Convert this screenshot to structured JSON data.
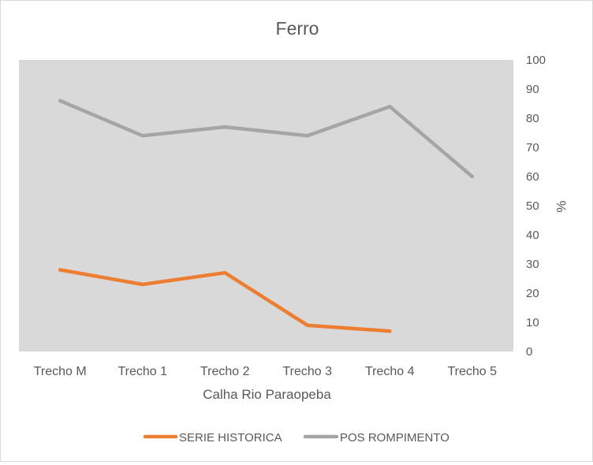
{
  "chart_data": {
    "type": "line",
    "title": "Ferro",
    "xlabel": "Calha Rio Paraopeba",
    "ylabel": "%",
    "categories": [
      "Trecho M",
      "Trecho 1",
      "Trecho 2",
      "Trecho 3",
      "Trecho 4",
      "Trecho 5"
    ],
    "yticks": [
      "0",
      "10",
      "20",
      "30",
      "40",
      "50",
      "60",
      "70",
      "80",
      "90",
      "100"
    ],
    "ylim": [
      0,
      100
    ],
    "y_axis_side": "right",
    "grid": false,
    "legend_position": "bottom",
    "plot_background": "#d9d9d9",
    "series": [
      {
        "name": "SERIE HISTORICA",
        "color": "#ed7d31",
        "values": [
          28,
          23,
          27,
          9,
          7,
          null
        ]
      },
      {
        "name": "POS ROMPIMENTO",
        "color": "#a5a5a5",
        "values": [
          86,
          74,
          77,
          74,
          84,
          60
        ]
      }
    ]
  }
}
